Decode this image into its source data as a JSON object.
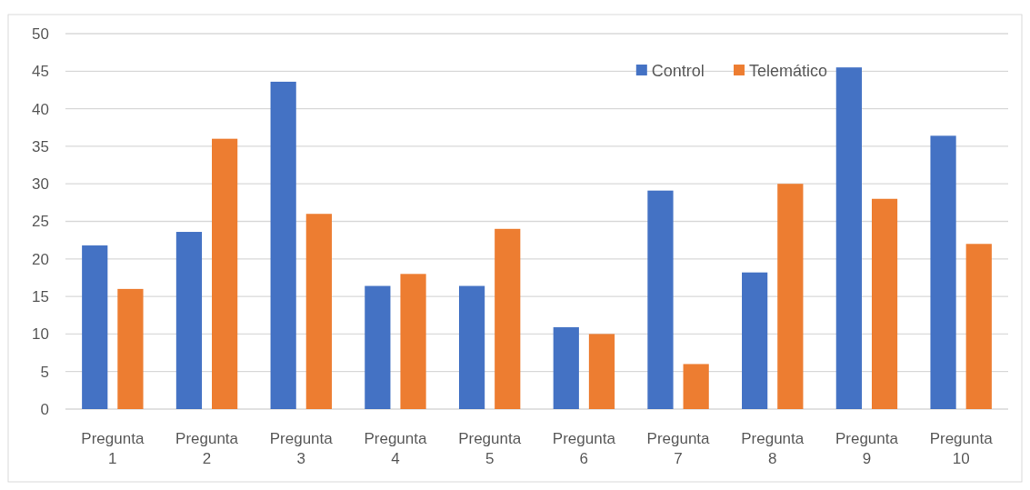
{
  "chart_data": {
    "type": "bar",
    "categories": [
      "Pregunta 1",
      "Pregunta 2",
      "Pregunta 3",
      "Pregunta 4",
      "Pregunta 5",
      "Pregunta 6",
      "Pregunta 7",
      "Pregunta 8",
      "Pregunta 9",
      "Pregunta 10"
    ],
    "series": [
      {
        "name": "Control",
        "color": "#4472c4",
        "values": [
          21.8,
          23.6,
          43.6,
          16.4,
          16.4,
          10.9,
          29.1,
          18.2,
          45.5,
          36.4
        ]
      },
      {
        "name": "Telemático",
        "color": "#ed7d31",
        "values": [
          16,
          36,
          26,
          18,
          24,
          10,
          6,
          30,
          28,
          22
        ]
      }
    ],
    "ylim": [
      0,
      50
    ],
    "yticks": [
      0,
      5,
      10,
      15,
      20,
      25,
      30,
      35,
      40,
      45,
      50
    ],
    "grid": "y",
    "legend": "top right"
  }
}
